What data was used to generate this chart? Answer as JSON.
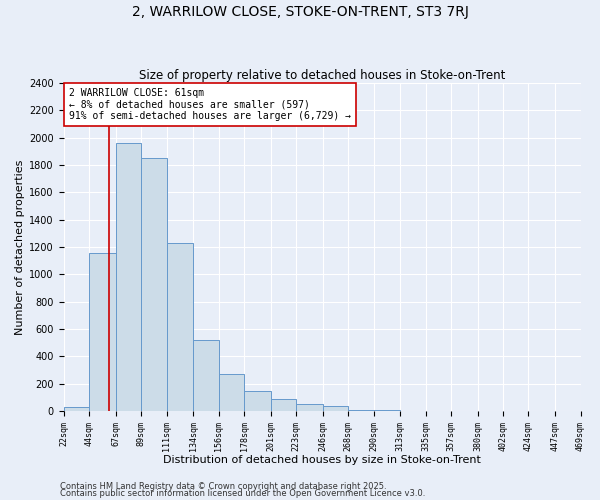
{
  "title": "2, WARRILOW CLOSE, STOKE-ON-TRENT, ST3 7RJ",
  "subtitle": "Size of property relative to detached houses in Stoke-on-Trent",
  "xlabel": "Distribution of detached houses by size in Stoke-on-Trent",
  "ylabel": "Number of detached properties",
  "bin_edges": [
    22,
    44,
    67,
    89,
    111,
    134,
    156,
    178,
    201,
    223,
    246,
    268,
    290,
    313,
    335,
    357,
    380,
    402,
    424,
    447,
    469
  ],
  "bar_heights": [
    30,
    1160,
    1960,
    1850,
    1230,
    520,
    275,
    150,
    90,
    50,
    35,
    10,
    5,
    2,
    1,
    1,
    0,
    0,
    0,
    0
  ],
  "bar_facecolor": "#ccdce8",
  "bar_edgecolor": "#6699cc",
  "vline_x": 61,
  "vline_color": "#cc0000",
  "annotation_text": "2 WARRILOW CLOSE: 61sqm\n← 8% of detached houses are smaller (597)\n91% of semi-detached houses are larger (6,729) →",
  "annotation_box_edgecolor": "#cc0000",
  "annotation_box_facecolor": "#ffffff",
  "ylim": [
    0,
    2400
  ],
  "yticks": [
    0,
    200,
    400,
    600,
    800,
    1000,
    1200,
    1400,
    1600,
    1800,
    2000,
    2200,
    2400
  ],
  "bg_color": "#e8eef8",
  "grid_color": "#ffffff",
  "footer_line1": "Contains HM Land Registry data © Crown copyright and database right 2025.",
  "footer_line2": "Contains public sector information licensed under the Open Government Licence v3.0."
}
